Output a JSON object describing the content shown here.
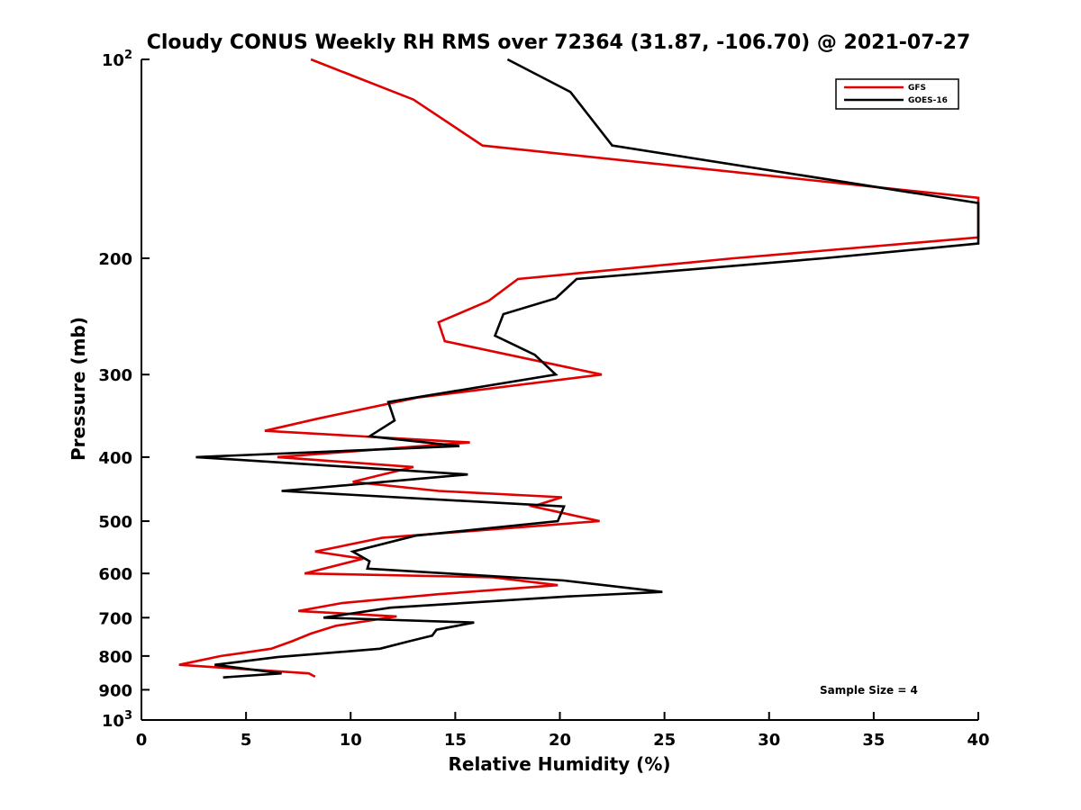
{
  "chart_data": {
    "type": "line",
    "title": "Cloudy CONUS Weekly RH RMS over 72364 (31.87, -106.70) @ 2021-07-27",
    "xlabel": "Relative Humidity (%)",
    "ylabel": "Pressure (mb)",
    "xlim": [
      0,
      40
    ],
    "ylim": [
      100,
      1000
    ],
    "y_scale": "log",
    "y_reversed": true,
    "x_ticks": [
      "0",
      "5",
      "10",
      "15",
      "20",
      "25",
      "30",
      "35",
      "40"
    ],
    "y_ticks": [
      {
        "value": 100,
        "base": "10",
        "exp": "2"
      },
      {
        "value": 200,
        "label": "200"
      },
      {
        "value": 300,
        "label": "300"
      },
      {
        "value": 400,
        "label": "400"
      },
      {
        "value": 500,
        "label": "500"
      },
      {
        "value": 600,
        "label": "600"
      },
      {
        "value": 700,
        "label": "700"
      },
      {
        "value": 800,
        "label": "800"
      },
      {
        "value": 900,
        "label": "900"
      },
      {
        "value": 1000,
        "base": "10",
        "exp": "3"
      }
    ],
    "grid": false,
    "legend_position": "top-right",
    "annotation": "Sample Size = 4",
    "series": [
      {
        "name": "GFS",
        "color": "#e00000",
        "points": [
          [
            8.1,
            100
          ],
          [
            13,
            115
          ],
          [
            16.3,
            135
          ],
          [
            40,
            162
          ],
          [
            40,
            186
          ],
          [
            28.3,
            200
          ],
          [
            18,
            215
          ],
          [
            16.6,
            232
          ],
          [
            14.2,
            250
          ],
          [
            14.5,
            267
          ],
          [
            22,
            300
          ],
          [
            13.2,
            325
          ],
          [
            8.4,
            350
          ],
          [
            5.9,
            365
          ],
          [
            15.7,
            380
          ],
          [
            6.5,
            400
          ],
          [
            13,
            414
          ],
          [
            10.1,
            436
          ],
          [
            14.2,
            450
          ],
          [
            20.1,
            460
          ],
          [
            18.7,
            475
          ],
          [
            21.9,
            500
          ],
          [
            11.5,
            530
          ],
          [
            8.3,
            556
          ],
          [
            10.6,
            570
          ],
          [
            7.8,
            600
          ],
          [
            16.8,
            608
          ],
          [
            19.9,
            625
          ],
          [
            14.2,
            645
          ],
          [
            9.6,
            665
          ],
          [
            7.5,
            684
          ],
          [
            12.2,
            697
          ],
          [
            9.3,
            720
          ],
          [
            8.1,
            740
          ],
          [
            7.2,
            760
          ],
          [
            6.2,
            780
          ],
          [
            3.8,
            800
          ],
          [
            1.8,
            825
          ],
          [
            8,
            850
          ],
          [
            8.3,
            860
          ]
        ]
      },
      {
        "name": "GOES-16",
        "color": "#000000",
        "points": [
          [
            17.5,
            100
          ],
          [
            20.5,
            112
          ],
          [
            22.5,
            135
          ],
          [
            40,
            165
          ],
          [
            40,
            190
          ],
          [
            32.6,
            200
          ],
          [
            20.8,
            215
          ],
          [
            19.8,
            230
          ],
          [
            17.3,
            243
          ],
          [
            16.9,
            262
          ],
          [
            18.8,
            280
          ],
          [
            19.8,
            300
          ],
          [
            11.8,
            330
          ],
          [
            12.1,
            352
          ],
          [
            10.9,
            372
          ],
          [
            15.2,
            385
          ],
          [
            2.6,
            400
          ],
          [
            15.6,
            425
          ],
          [
            6.7,
            450
          ],
          [
            20.2,
            475
          ],
          [
            19.9,
            500
          ],
          [
            13.1,
            526
          ],
          [
            10.1,
            556
          ],
          [
            10.9,
            575
          ],
          [
            10.8,
            590
          ],
          [
            20.2,
            615
          ],
          [
            24.9,
            640
          ],
          [
            20.4,
            650
          ],
          [
            11.9,
            676
          ],
          [
            8.7,
            700
          ],
          [
            15.9,
            712
          ],
          [
            14.1,
            730
          ],
          [
            13.9,
            745
          ],
          [
            12.8,
            760
          ],
          [
            11.4,
            780
          ],
          [
            6.5,
            803
          ],
          [
            3.5,
            825
          ],
          [
            6.7,
            850
          ],
          [
            3.9,
            862
          ]
        ]
      }
    ]
  }
}
